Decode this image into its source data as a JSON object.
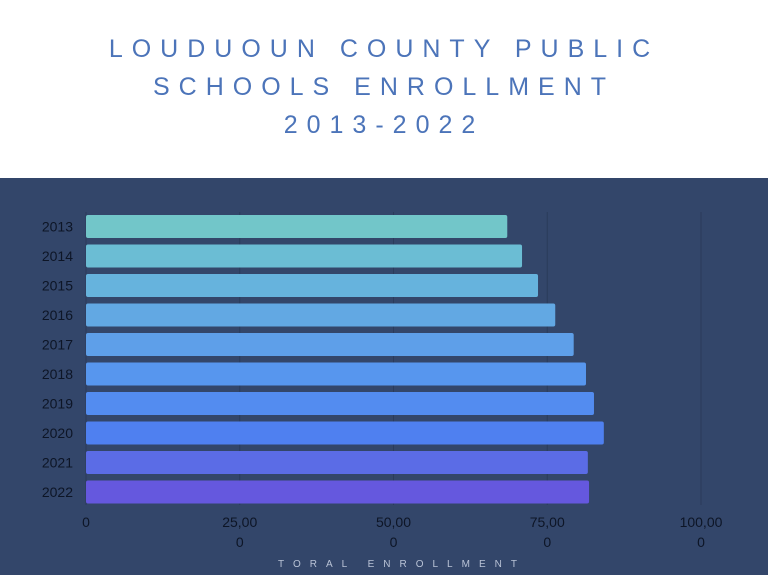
{
  "title_lines": [
    "LOUDUOUN COUNTY PUBLIC",
    "SCHOOLS ENROLLMENT",
    "2013-2022"
  ],
  "chart_data": {
    "type": "bar",
    "orientation": "horizontal",
    "title": "LOUDUOUN COUNTY PUBLIC SCHOOLS ENROLLMENT 2013-2022",
    "xlabel": "TORAL ENROLLMENT",
    "ylabel": "",
    "categories": [
      "2013",
      "2014",
      "2015",
      "2016",
      "2017",
      "2018",
      "2019",
      "2020",
      "2021",
      "2022"
    ],
    "values": [
      68500,
      70900,
      73500,
      76300,
      79300,
      81300,
      82600,
      84200,
      81600,
      81800
    ],
    "xlim": [
      0,
      100000
    ],
    "x_ticks": [
      "0",
      "25,000",
      "50,000",
      "75,000",
      "100,000"
    ],
    "grid": true,
    "colors": [
      "#72c6c9",
      "#6bbdd4",
      "#66b3dd",
      "#62a8e3",
      "#5e9fe9",
      "#5796ee",
      "#538cf0",
      "#4f80f0",
      "#5b6ce6",
      "#6558de"
    ],
    "background": "#33466a",
    "title_color": "#4c74b9"
  }
}
